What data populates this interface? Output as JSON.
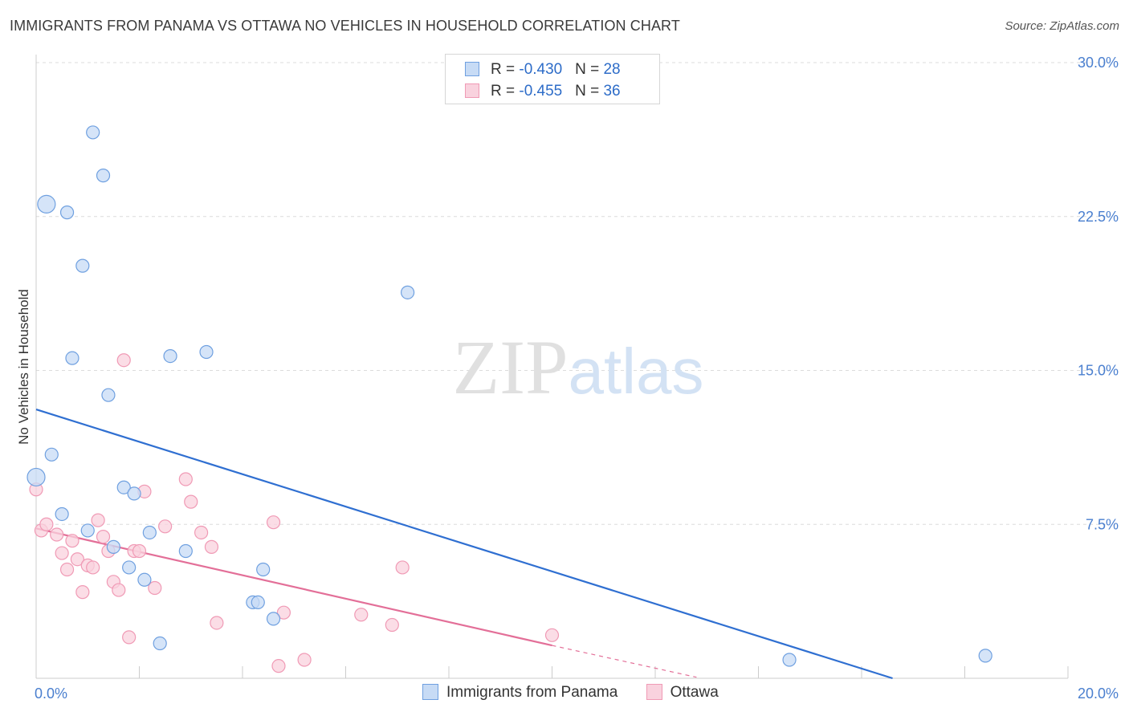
{
  "chart_data": {
    "type": "scatter",
    "title": "IMMIGRANTS FROM PANAMA VS OTTAWA NO VEHICLES IN HOUSEHOLD CORRELATION CHART",
    "source": "Source: ZipAtlas.com",
    "xlabel": "",
    "ylabel": "No Vehicles in Household",
    "xlim": [
      0,
      20
    ],
    "ylim": [
      0,
      30
    ],
    "x_tick_labels": [
      "0.0%",
      "20.0%"
    ],
    "y_ticks": [
      7.5,
      15.0,
      22.5,
      30.0
    ],
    "y_tick_labels": [
      "7.5%",
      "15.0%",
      "22.5%",
      "30.0%"
    ],
    "watermark": "ZIPatlas",
    "legend_top": [
      {
        "r_label": "R = ",
        "r_value": "-0.430",
        "n_label": "N = ",
        "n_value": "28"
      },
      {
        "r_label": "R = ",
        "r_value": "-0.455",
        "n_label": "N = ",
        "n_value": "36"
      }
    ],
    "series": [
      {
        "name": "Immigrants from Panama",
        "color": "#6fa0e0",
        "fill": "#c7dbf5",
        "trend_color": "#2f6fd1",
        "trend": {
          "x0": 0,
          "y0": 13.1,
          "x1": 16.6,
          "y1": 0
        },
        "points": [
          {
            "x": 0.2,
            "y": 23.1,
            "big": true
          },
          {
            "x": 0.6,
            "y": 22.7
          },
          {
            "x": 1.1,
            "y": 26.6
          },
          {
            "x": 1.3,
            "y": 24.5
          },
          {
            "x": 0.9,
            "y": 20.1
          },
          {
            "x": 0.7,
            "y": 15.6
          },
          {
            "x": 2.6,
            "y": 15.7
          },
          {
            "x": 3.3,
            "y": 15.9
          },
          {
            "x": 1.4,
            "y": 13.8
          },
          {
            "x": 0.3,
            "y": 10.9
          },
          {
            "x": 0.0,
            "y": 9.8,
            "big": true
          },
          {
            "x": 0.5,
            "y": 8.0
          },
          {
            "x": 1.7,
            "y": 9.3
          },
          {
            "x": 1.9,
            "y": 9.0
          },
          {
            "x": 1.0,
            "y": 7.2
          },
          {
            "x": 2.2,
            "y": 7.1
          },
          {
            "x": 1.5,
            "y": 6.4
          },
          {
            "x": 2.9,
            "y": 6.2
          },
          {
            "x": 1.8,
            "y": 5.4
          },
          {
            "x": 2.1,
            "y": 4.8
          },
          {
            "x": 4.4,
            "y": 5.3
          },
          {
            "x": 4.2,
            "y": 3.7
          },
          {
            "x": 4.3,
            "y": 3.7
          },
          {
            "x": 4.6,
            "y": 2.9
          },
          {
            "x": 2.4,
            "y": 1.7
          },
          {
            "x": 7.2,
            "y": 18.8
          },
          {
            "x": 14.6,
            "y": 0.9
          },
          {
            "x": 18.4,
            "y": 1.1
          }
        ]
      },
      {
        "name": "Ottawa",
        "color": "#f09ab5",
        "fill": "#f9d2de",
        "trend_color": "#e36f98",
        "trend": {
          "x0": 0,
          "y0": 7.3,
          "x1": 10.0,
          "y1": 1.6
        },
        "trend_dash": {
          "x0": 10.0,
          "y0": 1.6,
          "x1": 12.8,
          "y1": 0.05
        },
        "points": [
          {
            "x": 0.0,
            "y": 9.2
          },
          {
            "x": 0.1,
            "y": 7.2
          },
          {
            "x": 0.2,
            "y": 7.5
          },
          {
            "x": 0.4,
            "y": 7.0
          },
          {
            "x": 0.5,
            "y": 6.1
          },
          {
            "x": 0.6,
            "y": 5.3
          },
          {
            "x": 0.7,
            "y": 6.7
          },
          {
            "x": 0.8,
            "y": 5.8
          },
          {
            "x": 0.9,
            "y": 4.2
          },
          {
            "x": 1.0,
            "y": 5.5
          },
          {
            "x": 1.1,
            "y": 5.4
          },
          {
            "x": 1.2,
            "y": 7.7
          },
          {
            "x": 1.3,
            "y": 6.9
          },
          {
            "x": 1.4,
            "y": 6.2
          },
          {
            "x": 1.5,
            "y": 4.7
          },
          {
            "x": 1.6,
            "y": 4.3
          },
          {
            "x": 1.7,
            "y": 15.5
          },
          {
            "x": 1.8,
            "y": 2.0
          },
          {
            "x": 1.9,
            "y": 6.2
          },
          {
            "x": 2.0,
            "y": 6.2
          },
          {
            "x": 2.1,
            "y": 9.1
          },
          {
            "x": 2.3,
            "y": 4.4
          },
          {
            "x": 2.5,
            "y": 7.4
          },
          {
            "x": 2.9,
            "y": 9.7
          },
          {
            "x": 3.0,
            "y": 8.6
          },
          {
            "x": 3.2,
            "y": 7.1
          },
          {
            "x": 3.4,
            "y": 6.4
          },
          {
            "x": 3.5,
            "y": 2.7
          },
          {
            "x": 4.6,
            "y": 7.6
          },
          {
            "x": 4.7,
            "y": 0.6
          },
          {
            "x": 4.8,
            "y": 3.2
          },
          {
            "x": 5.2,
            "y": 0.9
          },
          {
            "x": 6.3,
            "y": 3.1
          },
          {
            "x": 6.9,
            "y": 2.6
          },
          {
            "x": 7.1,
            "y": 5.4
          },
          {
            "x": 10.0,
            "y": 2.1
          }
        ]
      }
    ]
  }
}
